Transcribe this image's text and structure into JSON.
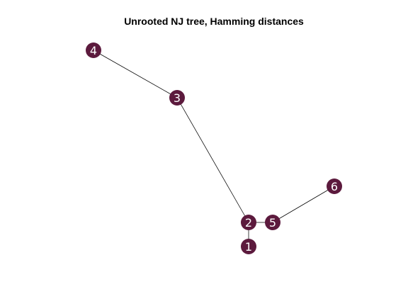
{
  "title": "Unrooted NJ tree, Hamming distances",
  "colors": {
    "node_fill": "#5c1a3d",
    "node_label": "#ffffff",
    "edge": "#000000",
    "background": "#ffffff"
  },
  "tree": {
    "nodes": [
      {
        "id": "4",
        "label": "4"
      },
      {
        "id": "3",
        "label": "3"
      },
      {
        "id": "2",
        "label": "2"
      },
      {
        "id": "1",
        "label": "1"
      },
      {
        "id": "5",
        "label": "5"
      },
      {
        "id": "6",
        "label": "6"
      }
    ],
    "edges": [
      {
        "from": "4",
        "to": "3"
      },
      {
        "from": "3",
        "to": "2"
      },
      {
        "from": "2",
        "to": "1"
      },
      {
        "from": "2",
        "to": "5"
      },
      {
        "from": "5",
        "to": "6"
      }
    ]
  }
}
